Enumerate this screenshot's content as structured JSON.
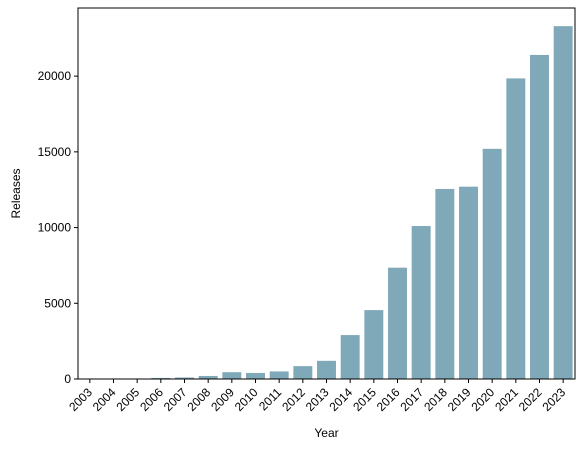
{
  "chart_data": {
    "type": "bar",
    "title": "",
    "xlabel": "Year",
    "ylabel": "Releases",
    "categories": [
      "2003",
      "2004",
      "2005",
      "2006",
      "2007",
      "2008",
      "2009",
      "2010",
      "2011",
      "2012",
      "2013",
      "2014",
      "2015",
      "2016",
      "2017",
      "2018",
      "2019",
      "2020",
      "2021",
      "2022",
      "2023"
    ],
    "values": [
      5,
      8,
      20,
      70,
      100,
      200,
      450,
      400,
      500,
      850,
      1200,
      2900,
      4550,
      7350,
      10100,
      12550,
      12700,
      15200,
      19850,
      21400,
      23300
    ],
    "yticks": [
      0,
      5000,
      10000,
      15000,
      20000
    ],
    "ylim": [
      0,
      24500
    ],
    "bar_color": "#7fa8b8",
    "grid": false,
    "legend": "none"
  }
}
